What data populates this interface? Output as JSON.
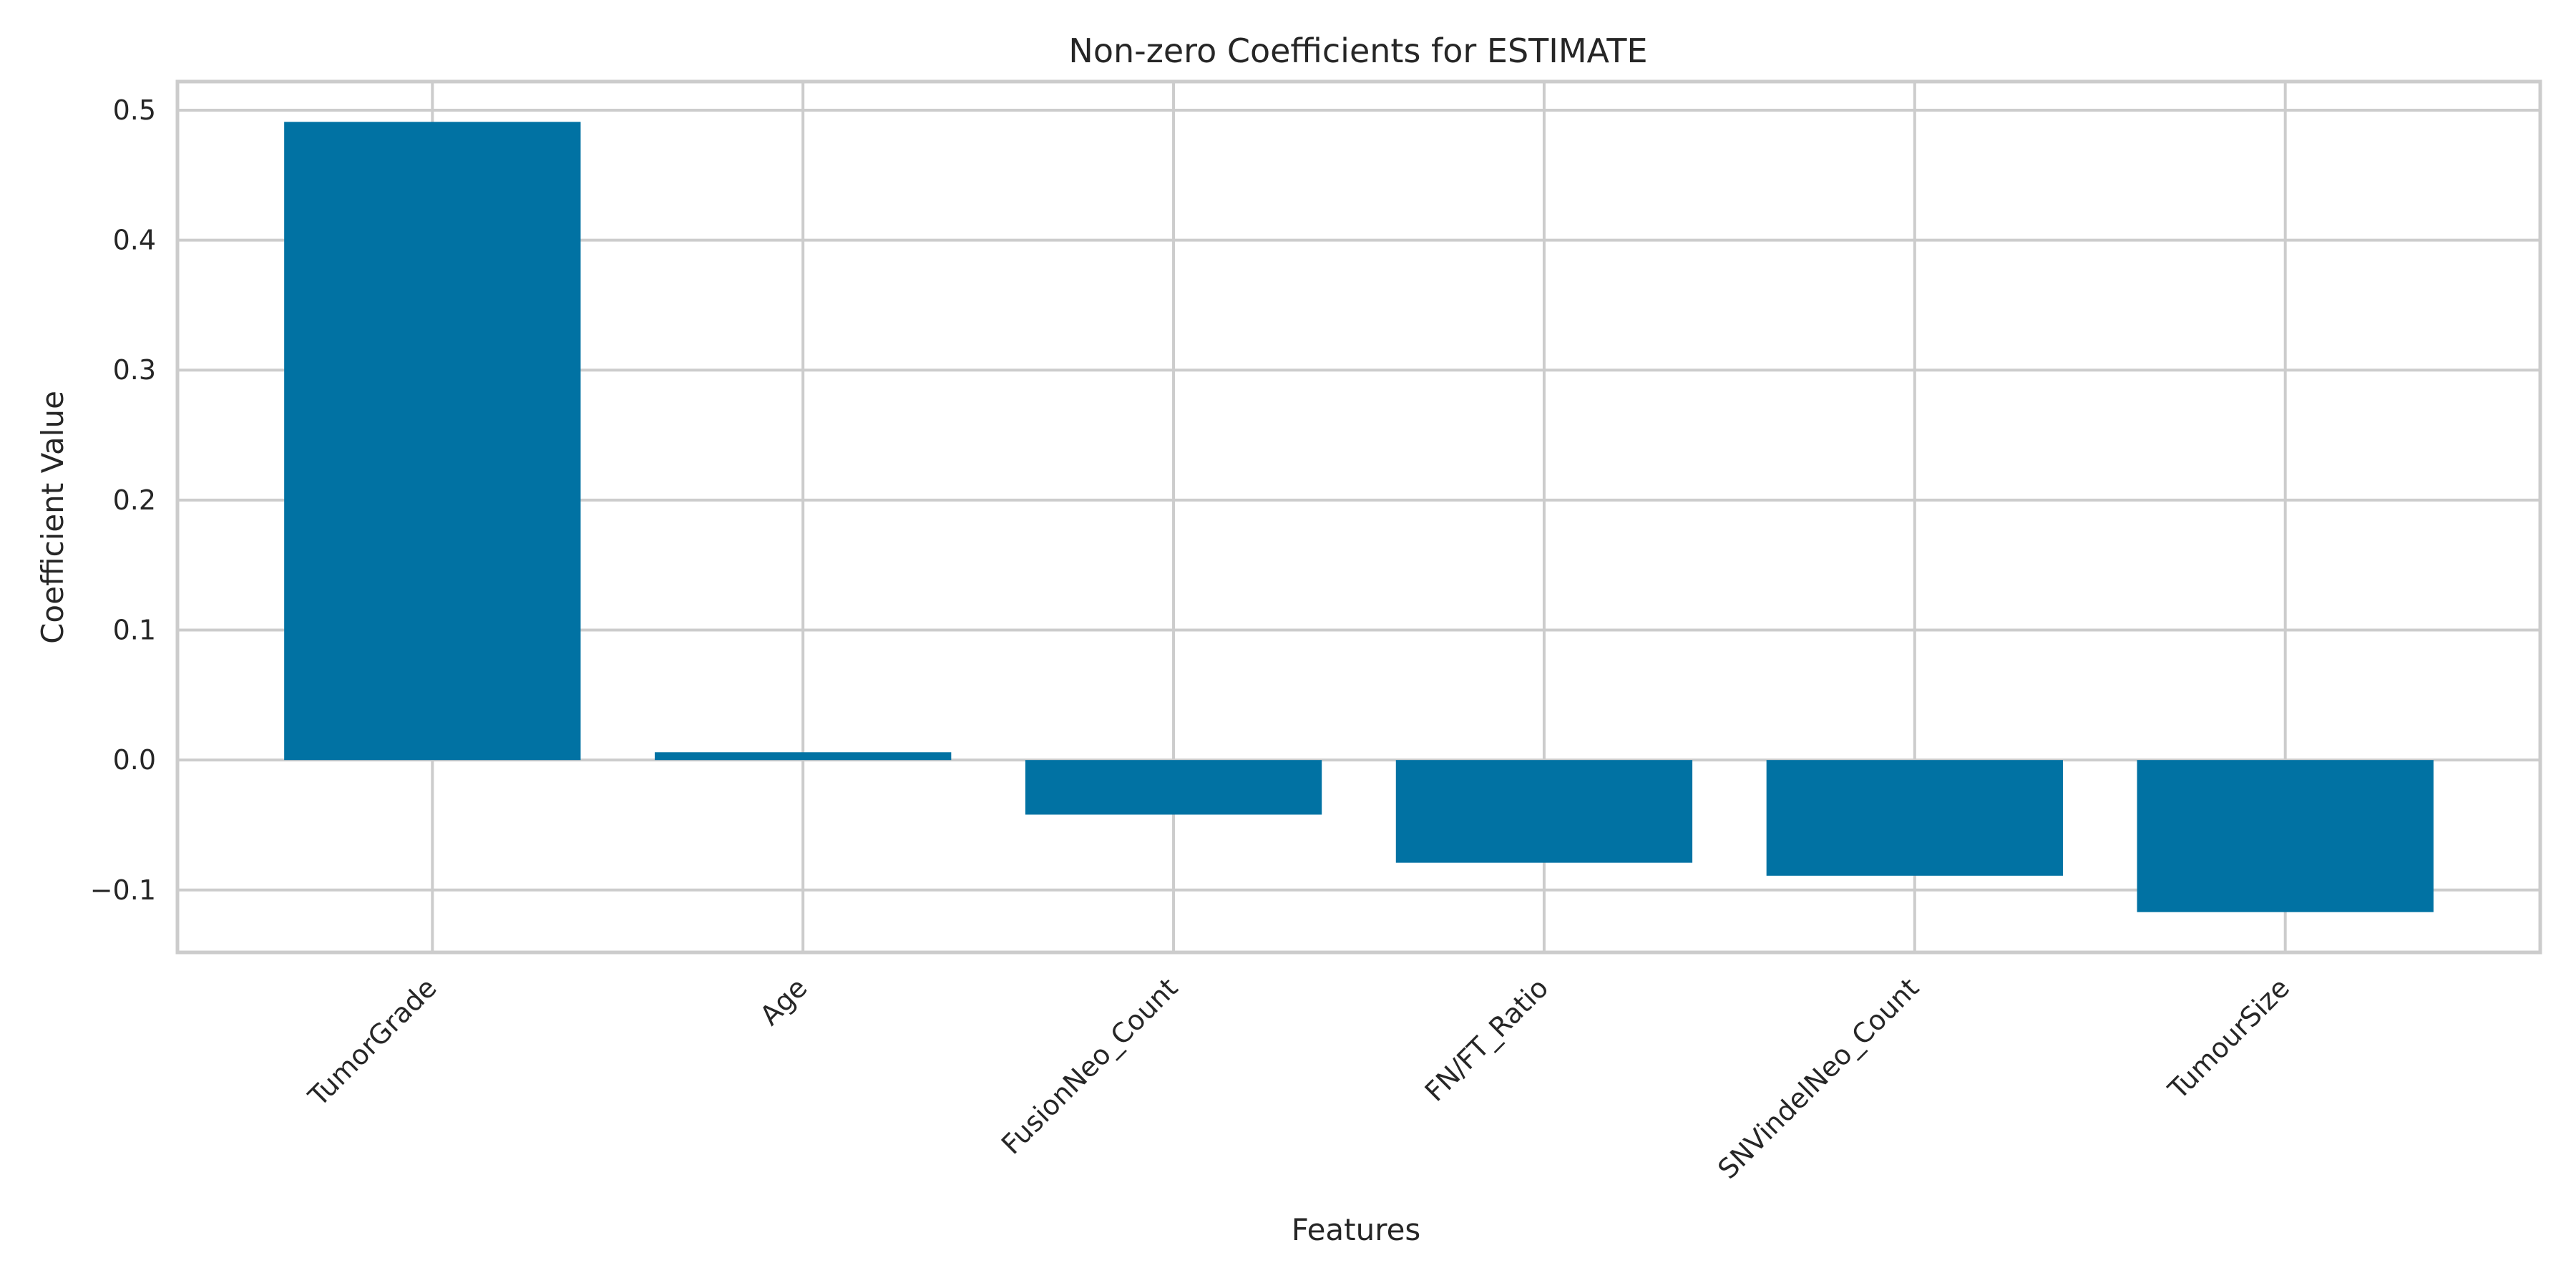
{
  "chart_data": {
    "type": "bar",
    "title": "Non-zero Coefficients for ESTIMATE",
    "xlabel": "Features",
    "ylabel": "Coefficient Value",
    "categories": [
      "TumorGrade",
      "Age",
      "FusionNeo_Count",
      "FN/FT_Ratio",
      "SNVindelNeo_Count",
      "TumourSize"
    ],
    "values": [
      0.491,
      0.006,
      -0.042,
      -0.079,
      -0.089,
      -0.117
    ],
    "ylim": [
      -0.148,
      0.522
    ],
    "yticks": [
      -0.1,
      0.0,
      0.1,
      0.2,
      0.3,
      0.4,
      0.5
    ],
    "ytick_labels": [
      "−0.1",
      "0.0",
      "0.1",
      "0.2",
      "0.3",
      "0.4",
      "0.5"
    ],
    "grid": true,
    "bar_color": "#0172a3"
  }
}
